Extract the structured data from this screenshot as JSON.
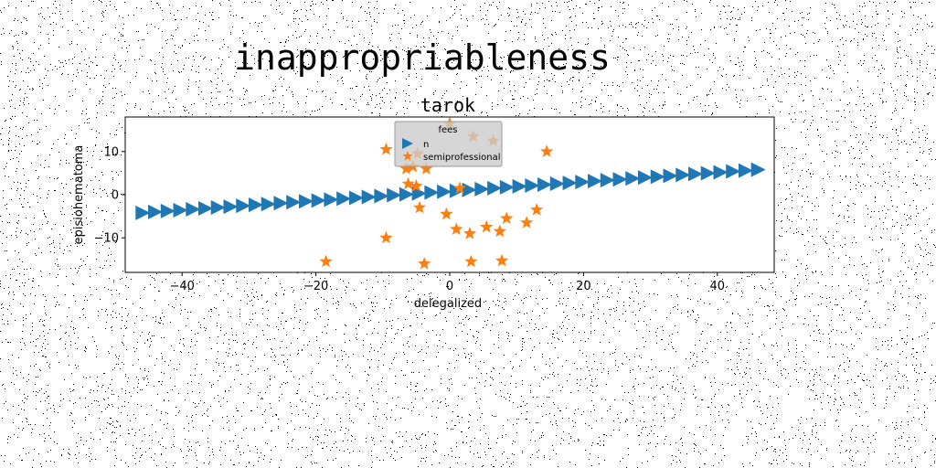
{
  "chart_data": {
    "type": "scatter",
    "suptitle": "inappropriableness",
    "title": "tarok",
    "xlabel": "delegalized",
    "ylabel": "episiohematoma",
    "xlim": [
      -48.5,
      48.5
    ],
    "ylim": [
      -18,
      18
    ],
    "xticks": [
      -40,
      -20,
      0,
      20,
      40
    ],
    "yticks": [
      -10,
      0,
      10
    ],
    "grid": false,
    "legend": {
      "title": "fees",
      "placement": "top-center",
      "entries": [
        "n",
        "semiprofessional"
      ]
    },
    "series": [
      {
        "name": "n",
        "marker": "triangle-right",
        "color": "#1f77b4",
        "x_start": -46,
        "x_end": 46,
        "y_start": -4.2,
        "y_end": 5.8,
        "count": 50
      },
      {
        "name": "semiprofessional",
        "marker": "star",
        "color": "#ff7f0e",
        "x": [
          -9.5,
          -6.5,
          -5.5,
          -3.5,
          -4.8,
          -6.2,
          -5.0,
          0.0,
          3.5,
          6.5,
          14.5,
          -4.5,
          -0.5,
          1.5,
          3.0,
          5.5,
          7.5,
          8.5,
          11.5,
          13.0,
          -9.5,
          1.0,
          -18.5,
          -3.8,
          3.2,
          7.8
        ],
        "y": [
          10.5,
          6.0,
          6.5,
          6.0,
          9.5,
          2.5,
          2.0,
          16.5,
          13.5,
          12.5,
          10.0,
          -3.0,
          -4.5,
          1.5,
          -9.0,
          -7.5,
          -8.5,
          -5.5,
          -6.5,
          -3.5,
          -10.0,
          -8.0,
          -15.5,
          -16.0,
          -15.5,
          -15.3
        ]
      }
    ]
  }
}
